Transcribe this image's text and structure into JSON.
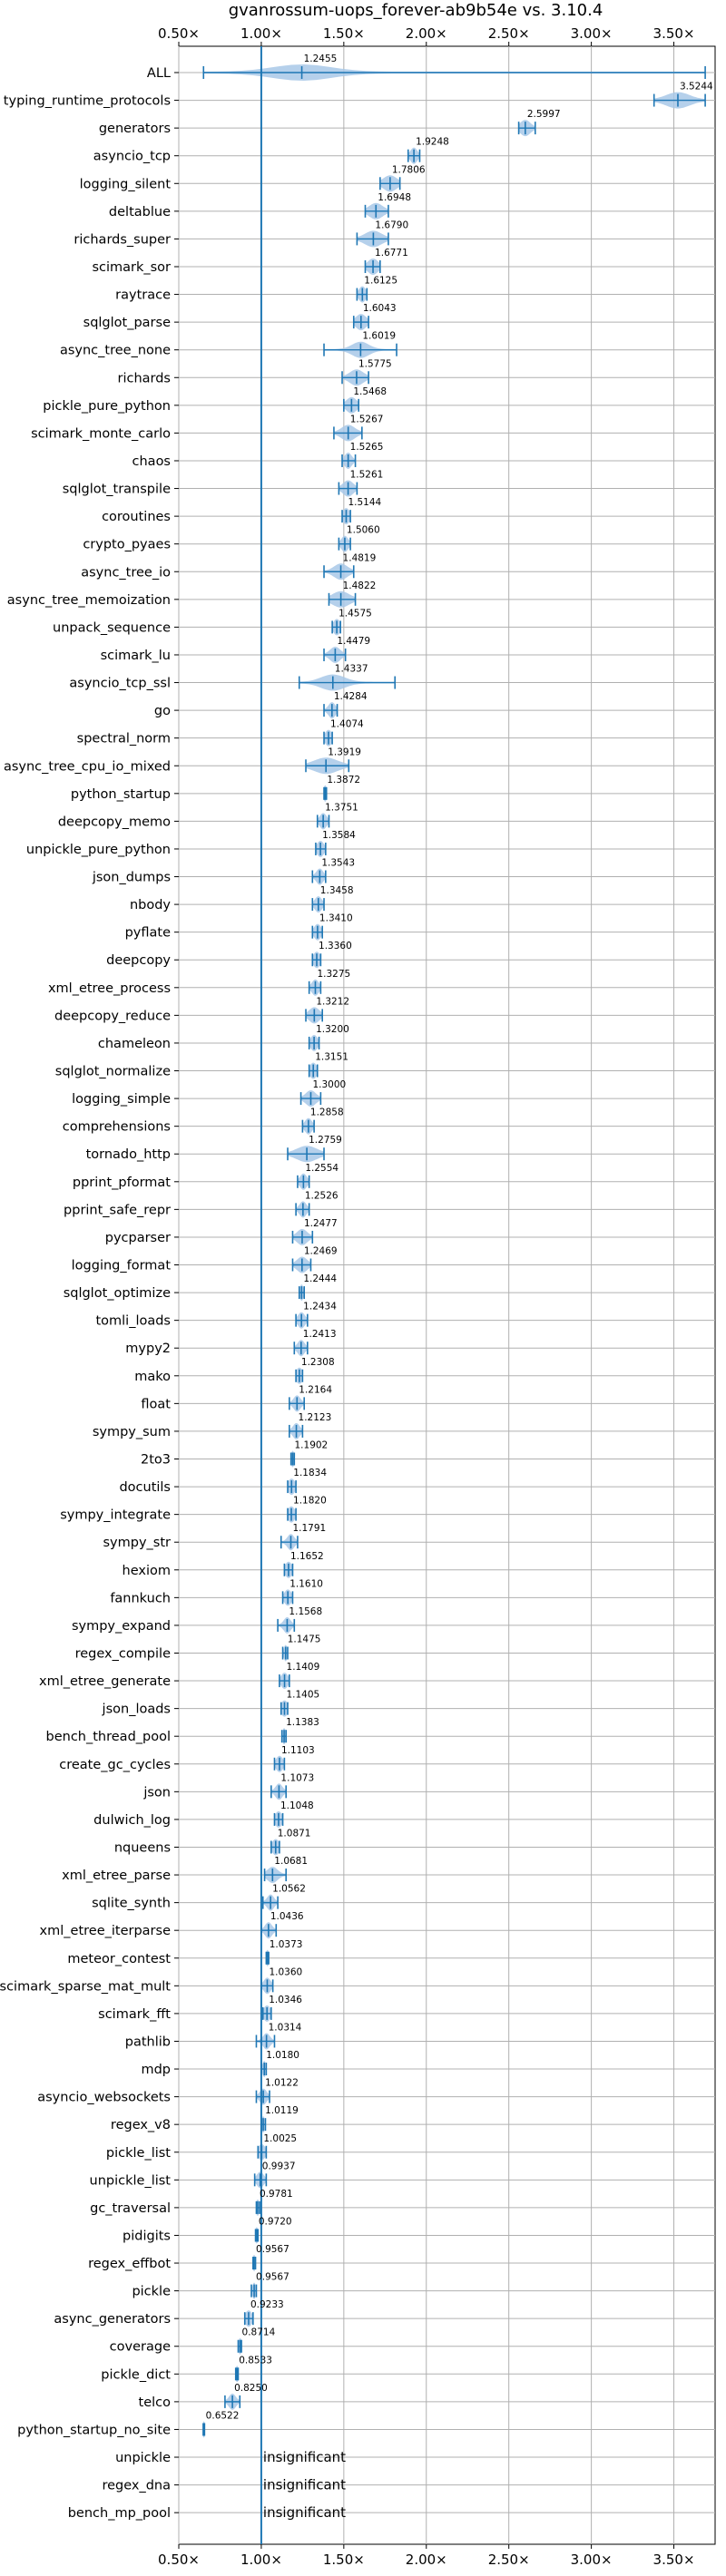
{
  "chart_data": {
    "type": "violin",
    "title": "gvanrossum-uops_forever-ab9b54e vs. 3.10.4",
    "xlim": [
      0.5,
      3.75
    ],
    "xticks": [
      "0.50×",
      "1.00×",
      "1.50×",
      "2.00×",
      "2.50×",
      "3.00×",
      "3.50×"
    ],
    "xtick_values": [
      0.5,
      1.0,
      1.5,
      2.0,
      2.5,
      3.0,
      3.5
    ],
    "reference_line": 1.0,
    "grid": true,
    "colors": {
      "violin": "#a8c8e8",
      "marks": "#1f77b4",
      "grid": "#b0b0b0",
      "reference": "#1f77b4"
    },
    "series": [
      {
        "name": "ALL",
        "value": 1.2455,
        "label": "1.2455",
        "min": 0.65,
        "max": 3.69,
        "spread": 0.18
      },
      {
        "name": "typing_runtime_protocols",
        "value": 3.5244,
        "label": "3.5244",
        "min": 3.38,
        "max": 3.69,
        "spread": 0.07
      },
      {
        "name": "generators",
        "value": 2.5997,
        "label": "2.5997",
        "min": 2.56,
        "max": 2.66,
        "spread": 0.03
      },
      {
        "name": "asyncio_tcp",
        "value": 1.9248,
        "label": "1.9248",
        "min": 1.89,
        "max": 1.96,
        "spread": 0.02
      },
      {
        "name": "logging_silent",
        "value": 1.7806,
        "label": "1.7806",
        "min": 1.72,
        "max": 1.84,
        "spread": 0.04
      },
      {
        "name": "deltablue",
        "value": 1.6948,
        "label": "1.6948",
        "min": 1.63,
        "max": 1.77,
        "spread": 0.04
      },
      {
        "name": "richards_super",
        "value": 1.679,
        "label": "1.6790",
        "min": 1.58,
        "max": 1.77,
        "spread": 0.05
      },
      {
        "name": "scimark_sor",
        "value": 1.6771,
        "label": "1.6771",
        "min": 1.63,
        "max": 1.72,
        "spread": 0.03
      },
      {
        "name": "raytrace",
        "value": 1.6125,
        "label": "1.6125",
        "min": 1.58,
        "max": 1.64,
        "spread": 0.02
      },
      {
        "name": "sqlglot_parse",
        "value": 1.6043,
        "label": "1.6043",
        "min": 1.56,
        "max": 1.65,
        "spread": 0.03
      },
      {
        "name": "async_tree_none",
        "value": 1.6019,
        "label": "1.6019",
        "min": 1.38,
        "max": 1.82,
        "spread": 0.05
      },
      {
        "name": "richards",
        "value": 1.5775,
        "label": "1.5775",
        "min": 1.49,
        "max": 1.65,
        "spread": 0.04
      },
      {
        "name": "pickle_pure_python",
        "value": 1.5468,
        "label": "1.5468",
        "min": 1.5,
        "max": 1.59,
        "spread": 0.03
      },
      {
        "name": "scimark_monte_carlo",
        "value": 1.5267,
        "label": "1.5267",
        "min": 1.44,
        "max": 1.61,
        "spread": 0.04
      },
      {
        "name": "chaos",
        "value": 1.5265,
        "label": "1.5265",
        "min": 1.49,
        "max": 1.57,
        "spread": 0.02
      },
      {
        "name": "sqlglot_transpile",
        "value": 1.5261,
        "label": "1.5261",
        "min": 1.47,
        "max": 1.58,
        "spread": 0.03
      },
      {
        "name": "coroutines",
        "value": 1.5144,
        "label": "1.5144",
        "min": 1.49,
        "max": 1.54,
        "spread": 0.02
      },
      {
        "name": "crypto_pyaes",
        "value": 1.506,
        "label": "1.5060",
        "min": 1.47,
        "max": 1.54,
        "spread": 0.02
      },
      {
        "name": "async_tree_io",
        "value": 1.4819,
        "label": "1.4819",
        "min": 1.38,
        "max": 1.56,
        "spread": 0.04
      },
      {
        "name": "async_tree_memoization",
        "value": 1.4822,
        "label": "1.4822",
        "min": 1.41,
        "max": 1.57,
        "spread": 0.05
      },
      {
        "name": "unpack_sequence",
        "value": 1.4575,
        "label": "1.4575",
        "min": 1.43,
        "max": 1.48,
        "spread": 0.02
      },
      {
        "name": "scimark_lu",
        "value": 1.4479,
        "label": "1.4479",
        "min": 1.38,
        "max": 1.51,
        "spread": 0.03
      },
      {
        "name": "asyncio_tcp_ssl",
        "value": 1.4337,
        "label": "1.4337",
        "min": 1.23,
        "max": 1.81,
        "spread": 0.07
      },
      {
        "name": "go",
        "value": 1.4284,
        "label": "1.4284",
        "min": 1.38,
        "max": 1.46,
        "spread": 0.02
      },
      {
        "name": "spectral_norm",
        "value": 1.4074,
        "label": "1.4074",
        "min": 1.38,
        "max": 1.43,
        "spread": 0.02
      },
      {
        "name": "async_tree_cpu_io_mixed",
        "value": 1.3919,
        "label": "1.3919",
        "min": 1.27,
        "max": 1.53,
        "spread": 0.07
      },
      {
        "name": "python_startup",
        "value": 1.3872,
        "label": "1.3872",
        "min": 1.38,
        "max": 1.395,
        "spread": 0.01
      },
      {
        "name": "deepcopy_memo",
        "value": 1.3751,
        "label": "1.3751",
        "min": 1.34,
        "max": 1.41,
        "spread": 0.02
      },
      {
        "name": "unpickle_pure_python",
        "value": 1.3584,
        "label": "1.3584",
        "min": 1.33,
        "max": 1.39,
        "spread": 0.02
      },
      {
        "name": "json_dumps",
        "value": 1.3543,
        "label": "1.3543",
        "min": 1.31,
        "max": 1.39,
        "spread": 0.02
      },
      {
        "name": "nbody",
        "value": 1.3458,
        "label": "1.3458",
        "min": 1.31,
        "max": 1.38,
        "spread": 0.02
      },
      {
        "name": "pyflate",
        "value": 1.341,
        "label": "1.3410",
        "min": 1.31,
        "max": 1.37,
        "spread": 0.02
      },
      {
        "name": "deepcopy",
        "value": 1.336,
        "label": "1.3360",
        "min": 1.31,
        "max": 1.36,
        "spread": 0.02
      },
      {
        "name": "xml_etree_process",
        "value": 1.3275,
        "label": "1.3275",
        "min": 1.29,
        "max": 1.36,
        "spread": 0.02
      },
      {
        "name": "deepcopy_reduce",
        "value": 1.3212,
        "label": "1.3212",
        "min": 1.27,
        "max": 1.37,
        "spread": 0.03
      },
      {
        "name": "chameleon",
        "value": 1.32,
        "label": "1.3200",
        "min": 1.29,
        "max": 1.35,
        "spread": 0.02
      },
      {
        "name": "sqlglot_normalize",
        "value": 1.3151,
        "label": "1.3151",
        "min": 1.29,
        "max": 1.34,
        "spread": 0.02
      },
      {
        "name": "logging_simple",
        "value": 1.3,
        "label": "1.3000",
        "min": 1.24,
        "max": 1.36,
        "spread": 0.03
      },
      {
        "name": "comprehensions",
        "value": 1.2858,
        "label": "1.2858",
        "min": 1.25,
        "max": 1.32,
        "spread": 0.02
      },
      {
        "name": "tornado_http",
        "value": 1.2759,
        "label": "1.2759",
        "min": 1.16,
        "max": 1.38,
        "spread": 0.06
      },
      {
        "name": "pprint_pformat",
        "value": 1.2554,
        "label": "1.2554",
        "min": 1.22,
        "max": 1.29,
        "spread": 0.02
      },
      {
        "name": "pprint_safe_repr",
        "value": 1.2526,
        "label": "1.2526",
        "min": 1.21,
        "max": 1.29,
        "spread": 0.02
      },
      {
        "name": "pycparser",
        "value": 1.2477,
        "label": "1.2477",
        "min": 1.19,
        "max": 1.31,
        "spread": 0.03
      },
      {
        "name": "logging_format",
        "value": 1.2469,
        "label": "1.2469",
        "min": 1.19,
        "max": 1.3,
        "spread": 0.03
      },
      {
        "name": "sqlglot_optimize",
        "value": 1.2444,
        "label": "1.2444",
        "min": 1.23,
        "max": 1.26,
        "spread": 0.01
      },
      {
        "name": "tomli_loads",
        "value": 1.2434,
        "label": "1.2434",
        "min": 1.21,
        "max": 1.28,
        "spread": 0.02
      },
      {
        "name": "mypy2",
        "value": 1.2413,
        "label": "1.2413",
        "min": 1.2,
        "max": 1.28,
        "spread": 0.02
      },
      {
        "name": "mako",
        "value": 1.2308,
        "label": "1.2308",
        "min": 1.21,
        "max": 1.25,
        "spread": 0.02
      },
      {
        "name": "float",
        "value": 1.2164,
        "label": "1.2164",
        "min": 1.17,
        "max": 1.26,
        "spread": 0.02
      },
      {
        "name": "sympy_sum",
        "value": 1.2123,
        "label": "1.2123",
        "min": 1.17,
        "max": 1.25,
        "spread": 0.02
      },
      {
        "name": "2to3",
        "value": 1.1902,
        "label": "1.1902",
        "min": 1.18,
        "max": 1.2,
        "spread": 0.01
      },
      {
        "name": "docutils",
        "value": 1.1834,
        "label": "1.1834",
        "min": 1.16,
        "max": 1.21,
        "spread": 0.02
      },
      {
        "name": "sympy_integrate",
        "value": 1.182,
        "label": "1.1820",
        "min": 1.16,
        "max": 1.21,
        "spread": 0.02
      },
      {
        "name": "sympy_str",
        "value": 1.1791,
        "label": "1.1791",
        "min": 1.12,
        "max": 1.22,
        "spread": 0.02
      },
      {
        "name": "hexiom",
        "value": 1.1652,
        "label": "1.1652",
        "min": 1.14,
        "max": 1.19,
        "spread": 0.02
      },
      {
        "name": "fannkuch",
        "value": 1.161,
        "label": "1.1610",
        "min": 1.13,
        "max": 1.19,
        "spread": 0.02
      },
      {
        "name": "sympy_expand",
        "value": 1.1568,
        "label": "1.1568",
        "min": 1.1,
        "max": 1.2,
        "spread": 0.02
      },
      {
        "name": "regex_compile",
        "value": 1.1475,
        "label": "1.1475",
        "min": 1.13,
        "max": 1.16,
        "spread": 0.01
      },
      {
        "name": "xml_etree_generate",
        "value": 1.1409,
        "label": "1.1409",
        "min": 1.11,
        "max": 1.17,
        "spread": 0.02
      },
      {
        "name": "json_loads",
        "value": 1.1405,
        "label": "1.1405",
        "min": 1.12,
        "max": 1.16,
        "spread": 0.02
      },
      {
        "name": "bench_thread_pool",
        "value": 1.1383,
        "label": "1.1383",
        "min": 1.125,
        "max": 1.15,
        "spread": 0.01
      },
      {
        "name": "create_gc_cycles",
        "value": 1.1103,
        "label": "1.1103",
        "min": 1.08,
        "max": 1.14,
        "spread": 0.02
      },
      {
        "name": "json",
        "value": 1.1073,
        "label": "1.1073",
        "min": 1.06,
        "max": 1.15,
        "spread": 0.02
      },
      {
        "name": "dulwich_log",
        "value": 1.1048,
        "label": "1.1048",
        "min": 1.08,
        "max": 1.13,
        "spread": 0.02
      },
      {
        "name": "nqueens",
        "value": 1.0871,
        "label": "1.0871",
        "min": 1.06,
        "max": 1.11,
        "spread": 0.02
      },
      {
        "name": "xml_etree_parse",
        "value": 1.0681,
        "label": "1.0681",
        "min": 1.02,
        "max": 1.15,
        "spread": 0.03
      },
      {
        "name": "sqlite_synth",
        "value": 1.0562,
        "label": "1.0562",
        "min": 1.01,
        "max": 1.1,
        "spread": 0.02
      },
      {
        "name": "xml_etree_iterparse",
        "value": 1.0436,
        "label": "1.0436",
        "min": 1.0,
        "max": 1.09,
        "spread": 0.02
      },
      {
        "name": "meteor_contest",
        "value": 1.0373,
        "label": "1.0373",
        "min": 1.03,
        "max": 1.045,
        "spread": 0.01
      },
      {
        "name": "scimark_sparse_mat_mult",
        "value": 1.036,
        "label": "1.0360",
        "min": 1.0,
        "max": 1.07,
        "spread": 0.02
      },
      {
        "name": "scimark_fft",
        "value": 1.0346,
        "label": "1.0346",
        "min": 1.01,
        "max": 1.06,
        "spread": 0.02
      },
      {
        "name": "pathlib",
        "value": 1.0314,
        "label": "1.0314",
        "min": 0.97,
        "max": 1.08,
        "spread": 0.02
      },
      {
        "name": "mdp",
        "value": 1.018,
        "label": "1.0180",
        "min": 1.0,
        "max": 1.03,
        "spread": 0.01
      },
      {
        "name": "asyncio_websockets",
        "value": 1.0122,
        "label": "1.0122",
        "min": 0.97,
        "max": 1.05,
        "spread": 0.02
      },
      {
        "name": "regex_v8",
        "value": 1.0119,
        "label": "1.0119",
        "min": 1.0,
        "max": 1.025,
        "spread": 0.01
      },
      {
        "name": "pickle_list",
        "value": 1.0025,
        "label": "1.0025",
        "min": 0.98,
        "max": 1.03,
        "spread": 0.02
      },
      {
        "name": "unpickle_list",
        "value": 0.9937,
        "label": "0.9937",
        "min": 0.96,
        "max": 1.03,
        "spread": 0.02
      },
      {
        "name": "gc_traversal",
        "value": 0.9781,
        "label": "0.9781",
        "min": 0.97,
        "max": 0.99,
        "spread": 0.01
      },
      {
        "name": "pidigits",
        "value": 0.972,
        "label": "0.9720",
        "min": 0.965,
        "max": 0.98,
        "spread": 0.01
      },
      {
        "name": "regex_effbot",
        "value": 0.9567,
        "label": "0.9567",
        "min": 0.95,
        "max": 0.965,
        "spread": 0.01
      },
      {
        "name": "pickle",
        "value": 0.9567,
        "label": "0.9567",
        "min": 0.94,
        "max": 0.97,
        "spread": 0.01
      },
      {
        "name": "async_generators",
        "value": 0.9233,
        "label": "0.9233",
        "min": 0.9,
        "max": 0.95,
        "spread": 0.02
      },
      {
        "name": "coverage",
        "value": 0.8714,
        "label": "0.8714",
        "min": 0.86,
        "max": 0.88,
        "spread": 0.01
      },
      {
        "name": "pickle_dict",
        "value": 0.8533,
        "label": "0.8533",
        "min": 0.845,
        "max": 0.86,
        "spread": 0.01
      },
      {
        "name": "telco",
        "value": 0.825,
        "label": "0.8250",
        "min": 0.78,
        "max": 0.87,
        "spread": 0.02
      },
      {
        "name": "python_startup_no_site",
        "value": 0.6522,
        "label": "0.6522",
        "min": 0.648,
        "max": 0.656,
        "spread": 0.008
      },
      {
        "name": "unpickle",
        "value": null,
        "label": "insignificant"
      },
      {
        "name": "regex_dna",
        "value": null,
        "label": "insignificant"
      },
      {
        "name": "bench_mp_pool",
        "value": null,
        "label": "insignificant"
      }
    ]
  }
}
